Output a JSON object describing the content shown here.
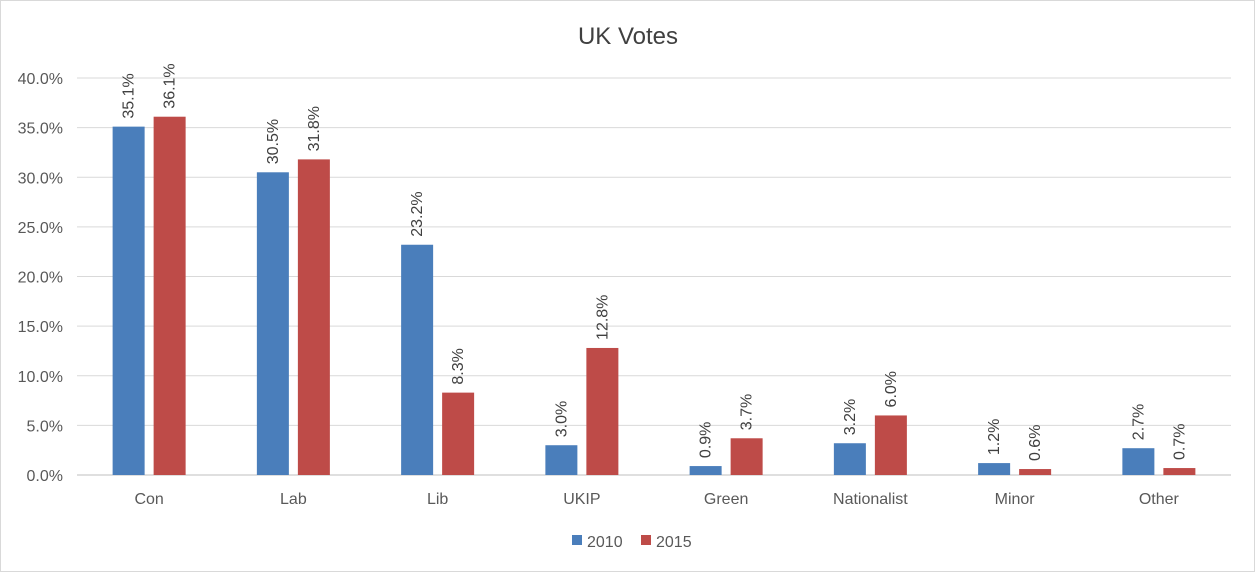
{
  "chart_data": {
    "type": "bar",
    "title": "UK Votes",
    "xlabel": "",
    "ylabel": "",
    "categories": [
      "Con",
      "Lab",
      "Lib",
      "UKIP",
      "Green",
      "Nationalist",
      "Minor",
      "Other"
    ],
    "series": [
      {
        "name": "2010",
        "color": "#4a7ebb",
        "values": [
          35.1,
          30.5,
          23.2,
          3.0,
          0.9,
          3.2,
          1.2,
          2.7
        ],
        "labels": [
          "35.1%",
          "30.5%",
          "23.2%",
          "3.0%",
          "0.9%",
          "3.2%",
          "1.2%",
          "2.7%"
        ]
      },
      {
        "name": "2015",
        "color": "#be4b48",
        "values": [
          36.1,
          31.8,
          8.3,
          12.8,
          3.7,
          6.0,
          0.6,
          0.7
        ],
        "labels": [
          "36.1%",
          "31.8%",
          "8.3%",
          "12.8%",
          "3.7%",
          "6.0%",
          "0.6%",
          "0.7%"
        ]
      }
    ],
    "ylim": [
      0,
      40
    ],
    "yticks": [
      0,
      5,
      10,
      15,
      20,
      25,
      30,
      35,
      40
    ],
    "ytick_labels": [
      "0.0%",
      "5.0%",
      "10.0%",
      "15.0%",
      "20.0%",
      "25.0%",
      "30.0%",
      "35.0%",
      "40.0%"
    ],
    "grid": true,
    "legend_position": "bottom",
    "data_labels_rotated": true
  }
}
